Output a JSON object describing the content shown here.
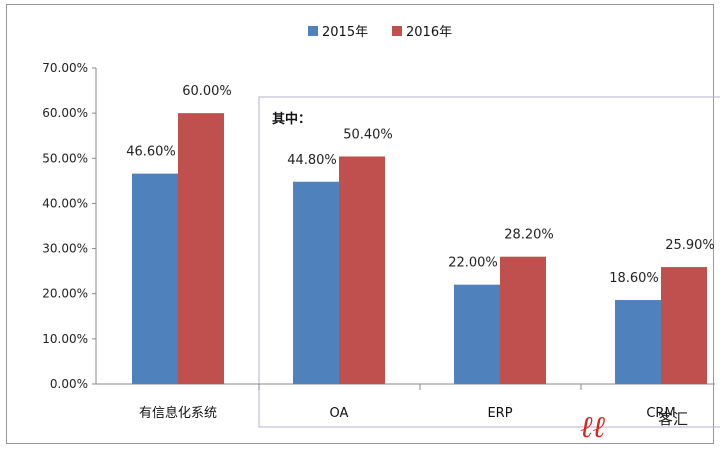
{
  "chart_data": {
    "type": "bar",
    "categories": [
      "有信息化系统",
      "OA",
      "ERP",
      "CRM"
    ],
    "series": [
      {
        "name": "2015年",
        "color": "#4f81bd",
        "values": [
          46.6,
          44.8,
          22.0,
          18.6
        ],
        "labels": [
          "46.60%",
          "44.80%",
          "22.00%",
          "18.60%"
        ]
      },
      {
        "name": "2016年",
        "color": "#c0504d",
        "values": [
          60.0,
          50.4,
          28.2,
          25.9
        ],
        "labels": [
          "60.00%",
          "50.40%",
          "28.20%",
          "25.90%"
        ]
      }
    ],
    "ylim": [
      0,
      70
    ],
    "yticks": [
      "0.00%",
      "10.00%",
      "20.00%",
      "30.00%",
      "40.00%",
      "50.00%",
      "60.00%",
      "70.00%"
    ],
    "legend_position": "top",
    "annotation": "其中：",
    "grid": false
  },
  "watermark": "客汇"
}
